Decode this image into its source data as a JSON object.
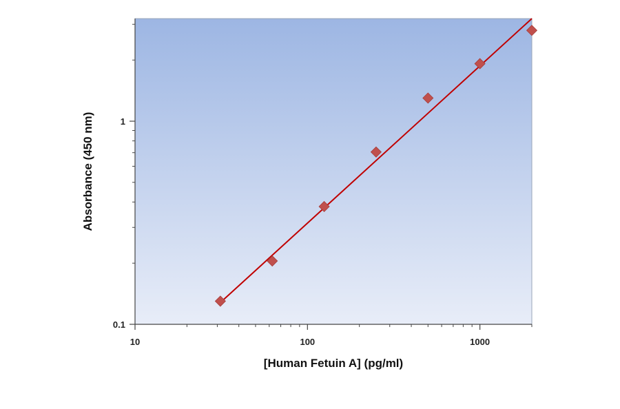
{
  "chart_data": {
    "type": "scatter",
    "xlabel": "[Human Fetuin A] (pg/ml)",
    "ylabel": "Absorbance (450 nm)",
    "x_scale": "log",
    "y_scale": "log",
    "xlim": [
      10,
      2000
    ],
    "ylim": [
      0.1,
      3.2
    ],
    "x_ticks": [
      {
        "value": 10,
        "label": "10"
      },
      {
        "value": 100,
        "label": "100"
      },
      {
        "value": 1000,
        "label": "1000"
      }
    ],
    "y_ticks": [
      {
        "value": 0.1,
        "label": "0.1"
      },
      {
        "value": 1,
        "label": "1"
      }
    ],
    "grid": false,
    "legend": "none",
    "series": [
      {
        "points": [
          {
            "x": 31.25,
            "y": 0.13
          },
          {
            "x": 62.5,
            "y": 0.205
          },
          {
            "x": 125,
            "y": 0.38
          },
          {
            "x": 250,
            "y": 0.705
          },
          {
            "x": 500,
            "y": 1.3
          },
          {
            "x": 1000,
            "y": 1.92
          },
          {
            "x": 2000,
            "y": 2.8
          }
        ],
        "marker": "diamond",
        "marker_color": "#c0504d",
        "fit_line": {
          "type": "power",
          "from": {
            "x": 31.25,
            "y": 0.128
          },
          "to": {
            "x": 2000,
            "y": 3.2
          },
          "color": "#c00000"
        }
      }
    ],
    "plot_background": {
      "top": "#9db6e3",
      "bottom": "#e8edf8"
    }
  }
}
